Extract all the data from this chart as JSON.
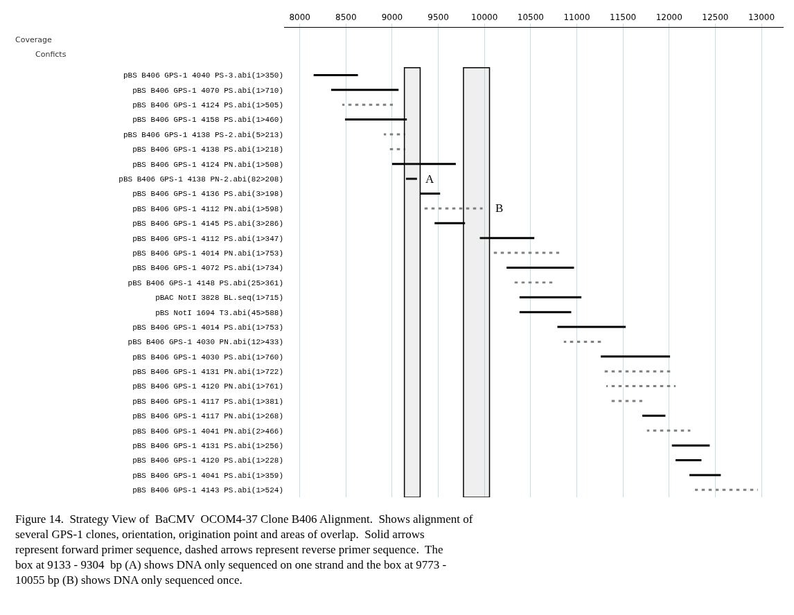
{
  "chart_data": {
    "type": "bar",
    "orientation": "horizontal",
    "categories": [
      "pBS B406 GPS-1 4040 PS-3.abi(1>350)",
      "pBS B406 GPS-1 4070 PS.abi(1>710)",
      "pBS B406 GPS-1 4124 PS.abi(1>505)",
      "pBS B406 GPS-1 4158 PS.abi(1>460)",
      "pBS B406 GPS-1 4138 PS-2.abi(5>213)",
      "pBS B406 GPS-1 4138 PS.abi(1>218)",
      "pBS B406 GPS-1 4124 PN.abi(1>508)",
      "pBS B406 GPS-1 4138 PN-2.abi(82>208)",
      "pBS B406 GPS-1 4136 PS.abi(3>198)",
      "pBS B406 GPS-1 4112 PN.abi(1>598)",
      "pBS B406 GPS-1 4145 PS.abi(3>286)",
      "pBS B406 GPS-1 4112 PS.abi(1>347)",
      "pBS B406 GPS-1 4014 PN.abi(1>753)",
      "pBS B406 GPS-1 4072 PS.abi(1>734)",
      "pBS B406 GPS-1 4148 PS.abi(25>361)",
      "pBAC NotI 3828 BL.seq(1>715)",
      "pBS NotI 1694 T3.abi(45>588)",
      "pBS B406 GPS-1 4014 PS.abi(1>753)",
      "pBS B406 GPS-1 4030 PN.abi(12>433)",
      "pBS B406 GPS-1 4030 PS.abi(1>760)",
      "pBS B406 GPS-1 4131 PN.abi(1>722)",
      "pBS B406 GPS-1 4120 PN.abi(1>761)",
      "pBS B406 GPS-1 4117 PS.abi(1>381)",
      "pBS B406 GPS-1 4117 PN.abi(1>268)",
      "pBS B406 GPS-1 4041 PN.abi(2>466)",
      "pBS B406 GPS-1 4131 PS.abi(1>256)",
      "pBS B406 GPS-1 4120 PS.abi(1>228)",
      "pBS B406 GPS-1 4041 PS.abi(1>359)",
      "pBS B406 GPS-1 4143 PS.abi(1>524)"
    ],
    "series": [
      {
        "color": "#000000",
        "line_style": "solid",
        "base": [
          8150,
          8340,
          null,
          8490,
          null,
          null,
          9000,
          9150,
          9300,
          null,
          9460,
          9950,
          null,
          10240,
          null,
          10380,
          10380,
          10790,
          null,
          11260,
          null,
          null,
          null,
          11710,
          null,
          12030,
          12070,
          12220,
          null
        ],
        "values": [
          480,
          730,
          null,
          670,
          null,
          null,
          690,
          120,
          220,
          null,
          330,
          590,
          null,
          730,
          null,
          670,
          560,
          740,
          null,
          750,
          null,
          null,
          null,
          250,
          null,
          410,
          280,
          340,
          null
        ]
      },
      {
        "color": "#000000",
        "line_style": "dashed",
        "base": [
          null,
          null,
          8460,
          null,
          8910,
          8950,
          null,
          null,
          null,
          9320,
          null,
          null,
          10070,
          null,
          10320,
          null,
          null,
          null,
          10860,
          null,
          11280,
          11320,
          11350,
          null,
          11760,
          null,
          null,
          null,
          12280
        ],
        "values": [
          null,
          null,
          550,
          null,
          230,
          190,
          null,
          null,
          null,
          660,
          null,
          null,
          740,
          null,
          420,
          null,
          null,
          null,
          430,
          null,
          760,
          750,
          360,
          null,
          470,
          null,
          null,
          null,
          680
        ]
      }
    ],
    "xlim": [
      7830,
      13240
    ],
    "xticks": [
      8000,
      8500,
      9000,
      9500,
      10000,
      10500,
      11000,
      11500,
      12000,
      12500,
      13000
    ],
    "grid": "x",
    "bands": [
      {
        "axis": "x",
        "from": 9133,
        "to": 9304,
        "label": "A"
      },
      {
        "axis": "x",
        "from": 9773,
        "to": 10055,
        "label": "B"
      }
    ],
    "annotations": [
      "Coverage",
      "Conficts",
      "Figure 14.  Strategy View of  BaCMV  OCOM4-37 Clone B406 Alignment.  Shows alignment of several GPS-1 clones, orientation, origination point and areas of overlap.  Solid arrows represent forward primer sequence, dashed arrows represent reverse primer sequence.  The box at 9133 - 9304  bp (A) shows DNA only sequenced on one strand and the box at 9773 - 10055 bp (B) shows DNA only sequenced once."
    ]
  }
}
